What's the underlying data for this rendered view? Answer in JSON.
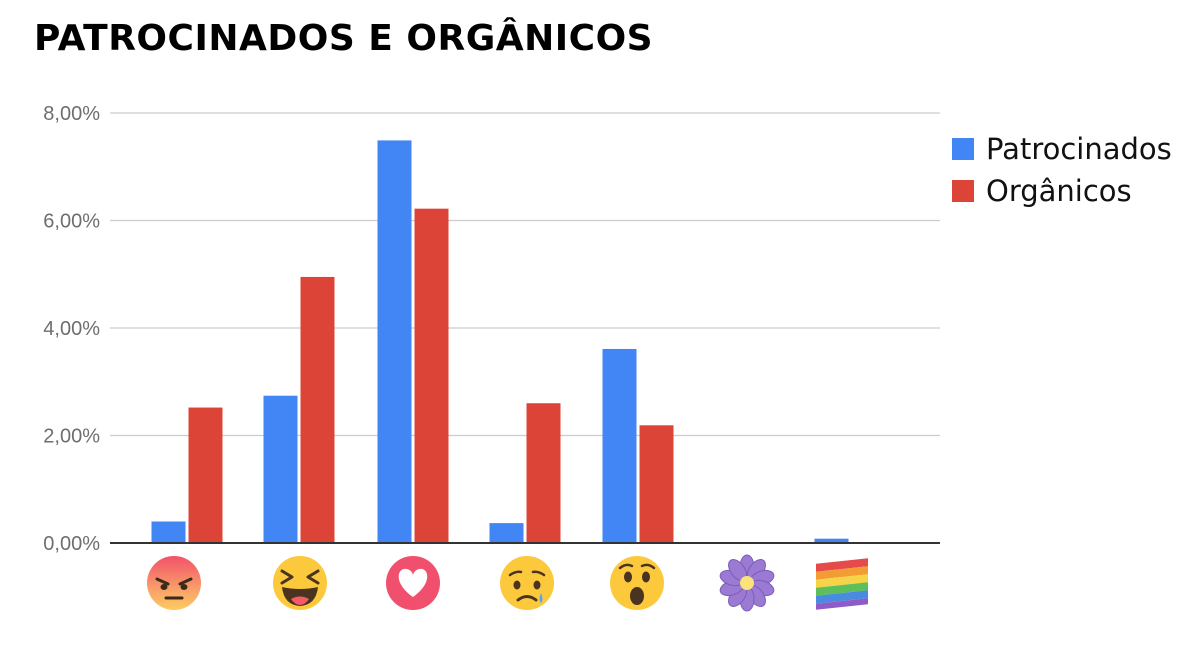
{
  "title": "PATROCINADOS E ORGÂNICOS",
  "colors": {
    "patrocinados": "#4285f4",
    "organicos": "#db4437",
    "grid": "#cccccc",
    "axis": "#333333"
  },
  "chart_data": {
    "type": "bar",
    "categories": [
      "angry-reaction",
      "haha-reaction",
      "love-reaction",
      "sad-reaction",
      "wow-reaction",
      "thankful-flower-reaction",
      "pride-rainbow-reaction"
    ],
    "series": [
      {
        "name": "Patrocinados",
        "values": [
          0.4,
          2.74,
          7.49,
          0.37,
          3.61,
          0.0,
          0.08
        ]
      },
      {
        "name": "Orgânicos",
        "values": [
          2.52,
          4.95,
          6.22,
          2.6,
          2.19,
          0.0,
          0.0
        ]
      }
    ],
    "ylim": [
      0,
      8
    ],
    "yticks": [
      "0,00%",
      "2,00%",
      "4,00%",
      "6,00%",
      "8,00%"
    ],
    "ytick_values": [
      0,
      2,
      4,
      6,
      8
    ],
    "legend_position": "top-right",
    "grid": true,
    "xlabel": "",
    "ylabel": ""
  }
}
